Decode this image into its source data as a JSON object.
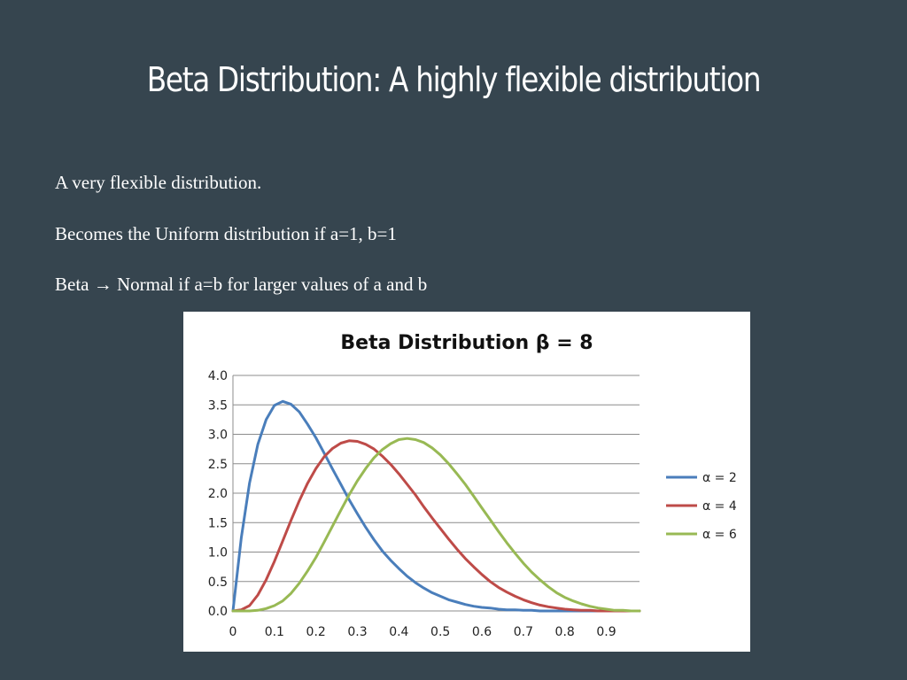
{
  "slide": {
    "title": "Beta Distribution: A highly flexible distribution",
    "bullets": [
      "A very flexible distribution.",
      "Becomes the Uniform distribution if a=1, b=1",
      "Beta → Normal if a=b for larger values of a and b"
    ],
    "background": "#36454f"
  },
  "chart_data": {
    "type": "line",
    "title": "Beta Distribution β = 8",
    "xlabel": "",
    "ylabel": "",
    "xlim": [
      0,
      0.98
    ],
    "ylim": [
      0,
      4.0
    ],
    "x_ticks": [
      "0",
      "0.1",
      "0.2",
      "0.3",
      "0.4",
      "0.5",
      "0.6",
      "0.7",
      "0.8",
      "0.9"
    ],
    "y_ticks": [
      "0.0",
      "0.5",
      "1.0",
      "1.5",
      "2.0",
      "2.5",
      "3.0",
      "3.5",
      "4.0"
    ],
    "grid": true,
    "legend": "right",
    "beta": 8,
    "x": [
      0,
      0.02,
      0.04,
      0.06,
      0.08,
      0.1,
      0.12,
      0.14,
      0.16,
      0.18,
      0.2,
      0.22,
      0.24,
      0.26,
      0.28,
      0.3,
      0.32,
      0.34,
      0.36,
      0.38,
      0.4,
      0.42,
      0.44,
      0.46,
      0.48,
      0.5,
      0.52,
      0.54,
      0.56,
      0.58,
      0.6,
      0.62,
      0.64,
      0.66,
      0.68,
      0.7,
      0.72,
      0.74,
      0.76,
      0.78,
      0.8,
      0.82,
      0.84,
      0.86,
      0.88,
      0.9,
      0.92,
      0.94,
      0.96,
      0.98
    ],
    "series": [
      {
        "name": "α = 2",
        "color": "#4a7ebb",
        "values": [
          0,
          1.24,
          2.17,
          2.83,
          3.25,
          3.49,
          3.56,
          3.51,
          3.38,
          3.17,
          2.94,
          2.68,
          2.41,
          2.15,
          1.89,
          1.65,
          1.42,
          1.21,
          1.02,
          0.86,
          0.72,
          0.59,
          0.48,
          0.39,
          0.31,
          0.25,
          0.19,
          0.15,
          0.11,
          0.08,
          0.06,
          0.05,
          0.03,
          0.02,
          0.02,
          0.01,
          0.01,
          0,
          0,
          0,
          0,
          0,
          0,
          0,
          0,
          0,
          0,
          0,
          0,
          0
        ]
      },
      {
        "name": "α = 4",
        "color": "#be4b48",
        "values": [
          0,
          0.02,
          0.09,
          0.27,
          0.53,
          0.84,
          1.19,
          1.54,
          1.87,
          2.17,
          2.42,
          2.62,
          2.76,
          2.85,
          2.89,
          2.88,
          2.83,
          2.75,
          2.63,
          2.49,
          2.33,
          2.15,
          1.97,
          1.77,
          1.58,
          1.4,
          1.22,
          1.05,
          0.89,
          0.75,
          0.62,
          0.5,
          0.4,
          0.32,
          0.25,
          0.19,
          0.14,
          0.1,
          0.07,
          0.05,
          0.03,
          0.02,
          0.01,
          0.01,
          0,
          0,
          0,
          0,
          0,
          0
        ]
      },
      {
        "name": "α = 6",
        "color": "#98b954",
        "values": [
          0,
          0,
          0,
          0.01,
          0.04,
          0.09,
          0.17,
          0.3,
          0.47,
          0.68,
          0.91,
          1.17,
          1.44,
          1.71,
          1.97,
          2.21,
          2.42,
          2.6,
          2.74,
          2.84,
          2.91,
          2.93,
          2.91,
          2.86,
          2.77,
          2.65,
          2.5,
          2.33,
          2.15,
          1.95,
          1.75,
          1.55,
          1.35,
          1.16,
          0.98,
          0.81,
          0.66,
          0.53,
          0.41,
          0.31,
          0.23,
          0.17,
          0.12,
          0.08,
          0.05,
          0.03,
          0.01,
          0.01,
          0,
          0
        ]
      }
    ]
  }
}
